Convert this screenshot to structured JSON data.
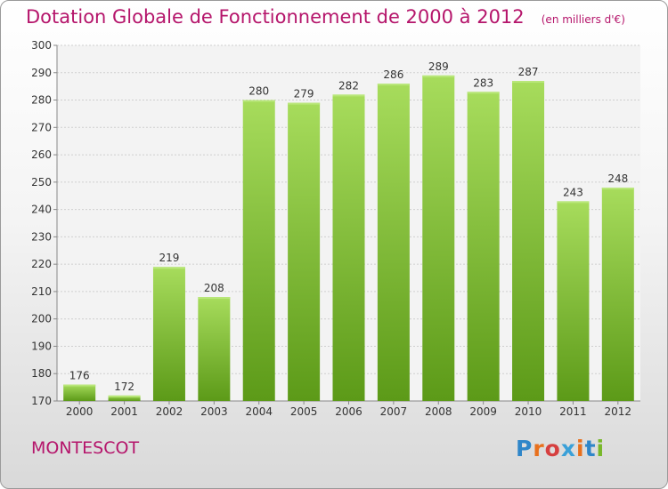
{
  "chart_data": {
    "type": "bar",
    "title": "Dotation Globale de Fonctionnement de 2000 à 2012",
    "unit": "(en milliers d'€)",
    "categories": [
      "2000",
      "2001",
      "2002",
      "2003",
      "2004",
      "2005",
      "2006",
      "2007",
      "2008",
      "2009",
      "2010",
      "2011",
      "2012"
    ],
    "values": [
      176,
      172,
      219,
      208,
      280,
      279,
      282,
      286,
      289,
      283,
      287,
      243,
      248
    ],
    "ylim": [
      170,
      300
    ],
    "yticks": [
      170,
      180,
      190,
      200,
      210,
      220,
      230,
      240,
      250,
      260,
      270,
      280,
      290,
      300
    ],
    "grid": true,
    "bar_color": "#78b82a"
  },
  "footer": {
    "commune": "MONTESCOT",
    "logo_text": "Proxiti",
    "logo_colors": [
      "#2f86c9",
      "#e8701d",
      "#d63f3f",
      "#3aa0d8",
      "#e8701d",
      "#2f86c9",
      "#78b82a"
    ]
  }
}
